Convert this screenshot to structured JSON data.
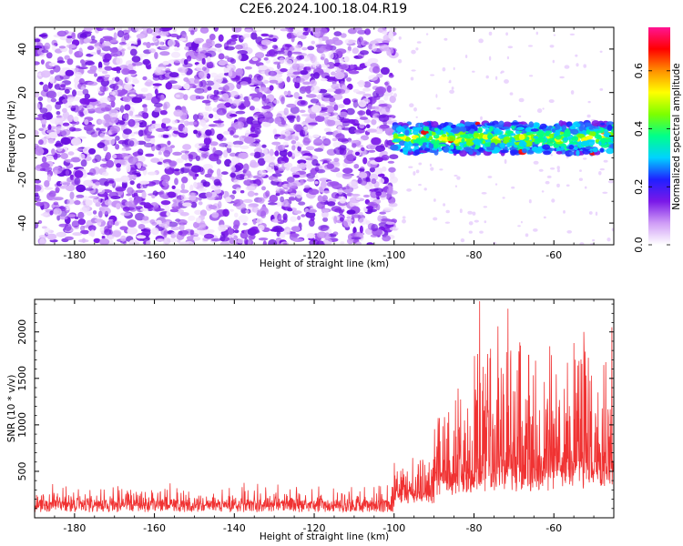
{
  "title": "C2E6.2024.100.18.04.R19",
  "chart_data": [
    {
      "type": "heatmap",
      "xlabel": "Height of straight line (km)",
      "ylabel": "Frequency (Hz)",
      "xlim": [
        -190,
        -45
      ],
      "ylim": [
        -50,
        50
      ],
      "x_ticks": [
        -180,
        -160,
        -140,
        -120,
        -100,
        -80,
        -60
      ],
      "y_ticks": [
        -40,
        -20,
        0,
        20,
        40
      ],
      "colorbar": {
        "label": "Normalized spectral amplitude",
        "range": [
          0,
          0.75
        ],
        "ticks": [
          "0.0",
          "0.2",
          "0.4",
          "0.6"
        ],
        "tick_values": [
          0,
          0.2,
          0.4,
          0.6
        ],
        "colormap": [
          "#ffffff",
          "#cf9cf6",
          "#7a18e8",
          "#2020ff",
          "#00d2ff",
          "#00ff8a",
          "#7dff00",
          "#ffff00",
          "#ff9000",
          "#ff0000",
          "#ff1493"
        ]
      },
      "features": {
        "noise_region_x": [
          -190,
          -100
        ],
        "noise_freq_range": [
          -50,
          50
        ],
        "signal_band_x": [
          -100,
          -45
        ],
        "signal_band_center_hz": -1,
        "signal_band_halfwidth_hz": 7
      },
      "grid": false
    },
    {
      "type": "line",
      "xlabel": "Height of straight line (km)",
      "ylabel": "SNR (10 * v/v)",
      "xlim": [
        -190,
        -45
      ],
      "ylim": [
        0,
        2350
      ],
      "x_ticks": [
        -180,
        -160,
        -140,
        -120,
        -100,
        -80,
        -60
      ],
      "y_ticks": [
        500,
        1000,
        1500,
        2000
      ],
      "series": [
        {
          "color": "#f03232",
          "segments": [
            {
              "x_range": [
                -190,
                -100
              ],
              "baseline": 140,
              "amplitude": 180
            },
            {
              "x_range": [
                -100,
                -90
              ],
              "baseline": 250,
              "amplitude": 500
            },
            {
              "x_range": [
                -90,
                -80
              ],
              "baseline": 400,
              "amplitude": 900
            },
            {
              "x_range": [
                -80,
                -60
              ],
              "baseline": 450,
              "amplitude": 1500
            },
            {
              "x_range": [
                -60,
                -45
              ],
              "baseline": 500,
              "amplitude": 1400
            }
          ],
          "peaks": [
            {
              "x": -78.6,
              "y": 2330
            },
            {
              "x": -71.5,
              "y": 2250
            },
            {
              "x": -74.0,
              "y": 2060
            },
            {
              "x": -66.3,
              "y": 1750
            },
            {
              "x": -84.0,
              "y": 1390
            },
            {
              "x": -55.0,
              "y": 1880
            },
            {
              "x": -52.5,
              "y": 2000
            },
            {
              "x": -45.5,
              "y": 2050
            }
          ]
        }
      ],
      "grid": false
    }
  ]
}
